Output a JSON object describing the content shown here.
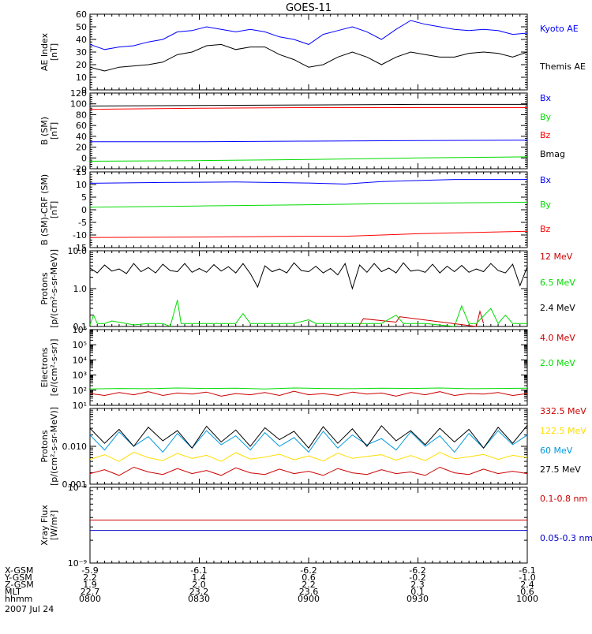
{
  "title": "GOES-11",
  "date": "2007 Jul 24",
  "footer": {
    "row_labels": [
      "X-GSM",
      "Y-GSM",
      "Z-GSM",
      "MLT",
      "hhmm"
    ],
    "columns": [
      {
        "values": [
          "-5.9",
          "2.2",
          "1.9",
          "22.7",
          "0800"
        ]
      },
      {
        "values": [
          "-6.1",
          "1.4",
          "2.0",
          "23.2",
          "0830"
        ]
      },
      {
        "values": [
          "-6.2",
          "0.6",
          "2.2",
          "23.6",
          "0900"
        ]
      },
      {
        "values": [
          "-6.2",
          "-0.2",
          "2.3",
          "0.1",
          "0930"
        ]
      },
      {
        "values": [
          "-6.1",
          "-1.0",
          "2.4",
          "0.6",
          "1000"
        ]
      }
    ]
  },
  "chart_data": [
    {
      "type": "line",
      "id": "ae",
      "ylabel": [
        "AE Index",
        "[nT]"
      ],
      "x_range": [
        0,
        120
      ],
      "ylim": [
        0,
        60
      ],
      "scale": "linear",
      "ticks": [
        0,
        10,
        20,
        30,
        40,
        50,
        60
      ],
      "tick_labels": [
        "0",
        "10",
        "20",
        "30",
        "40",
        "50",
        "60"
      ],
      "series": [
        {
          "name": "Kyoto AE",
          "color": "#0000ff",
          "x": [
            0,
            4,
            8,
            12,
            16,
            20,
            24,
            28,
            32,
            36,
            40,
            44,
            48,
            52,
            56,
            60,
            64,
            68,
            72,
            76,
            80,
            84,
            88,
            92,
            96,
            100,
            104,
            108,
            112,
            116,
            120
          ],
          "y": [
            36,
            32,
            34,
            35,
            38,
            40,
            46,
            47,
            50,
            48,
            46,
            48,
            46,
            42,
            40,
            36,
            44,
            47,
            50,
            46,
            40,
            48,
            55,
            52,
            50,
            48,
            47,
            48,
            47,
            44,
            45
          ]
        },
        {
          "name": "Themis AE",
          "color": "#000000",
          "x": [
            0,
            4,
            8,
            12,
            16,
            20,
            24,
            28,
            32,
            36,
            40,
            44,
            48,
            52,
            56,
            60,
            64,
            68,
            72,
            76,
            80,
            84,
            88,
            92,
            96,
            100,
            104,
            108,
            112,
            116,
            120
          ],
          "y": [
            18,
            15,
            18,
            19,
            20,
            22,
            28,
            30,
            35,
            36,
            32,
            34,
            34,
            28,
            24,
            18,
            20,
            26,
            30,
            26,
            20,
            26,
            30,
            28,
            26,
            26,
            29,
            30,
            29,
            26,
            30
          ]
        }
      ]
    },
    {
      "type": "line",
      "id": "b_sm",
      "ylabel": [
        "B (SM)",
        "[nT]"
      ],
      "x_range": [
        0,
        120
      ],
      "ylim": [
        -20,
        120
      ],
      "scale": "linear",
      "ticks": [
        -20,
        0,
        20,
        40,
        60,
        80,
        100,
        120
      ],
      "tick_labels": [
        "-20",
        "0",
        "20",
        "40",
        "60",
        "80",
        "100",
        "120"
      ],
      "series": [
        {
          "name": "Bx",
          "color": "#0000ff",
          "x": [
            0,
            30,
            60,
            90,
            120
          ],
          "y": [
            30,
            30,
            31,
            32,
            33
          ]
        },
        {
          "name": "By",
          "color": "#00dd00",
          "x": [
            0,
            30,
            60,
            90,
            120
          ],
          "y": [
            -6,
            -5,
            -3,
            0,
            2
          ]
        },
        {
          "name": "Bz",
          "color": "#ff0000",
          "x": [
            0,
            30,
            60,
            90,
            120
          ],
          "y": [
            90,
            92,
            93,
            93,
            93
          ]
        },
        {
          "name": "Bmag",
          "color": "#000000",
          "x": [
            0,
            30,
            60,
            90,
            120
          ],
          "y": [
            96,
            97,
            98,
            99,
            99
          ]
        }
      ]
    },
    {
      "type": "line",
      "id": "b_crf",
      "ylabel": [
        "B (SM)-CRF (SM)",
        "[nT]"
      ],
      "x_range": [
        0,
        120
      ],
      "ylim": [
        -15,
        15
      ],
      "scale": "linear",
      "ticks": [
        -15,
        -10,
        -5,
        0,
        5,
        10,
        15
      ],
      "tick_labels": [
        "-15",
        "-10",
        "-5",
        "0",
        "5",
        "10",
        "15"
      ],
      "series": [
        {
          "name": "Bx",
          "color": "#0000ff",
          "x": [
            0,
            20,
            40,
            60,
            70,
            80,
            100,
            120
          ],
          "y": [
            10.5,
            10.8,
            11,
            10.6,
            10.2,
            11.2,
            12,
            12
          ]
        },
        {
          "name": "By",
          "color": "#00dd00",
          "x": [
            0,
            30,
            60,
            90,
            120
          ],
          "y": [
            1,
            1.5,
            2,
            2.6,
            3
          ]
        },
        {
          "name": "Bz",
          "color": "#ff0000",
          "x": [
            0,
            30,
            60,
            70,
            90,
            120
          ],
          "y": [
            -11,
            -10.8,
            -10.5,
            -10.5,
            -9.5,
            -8.5
          ]
        }
      ]
    },
    {
      "type": "line",
      "id": "protons_low",
      "ylabel": [
        "Protons",
        "[p/(cm²-s-sr-MeV)]"
      ],
      "x_range": [
        0,
        120
      ],
      "ylim": [
        0.1,
        10
      ],
      "scale": "log",
      "ticks": [
        0.1,
        1,
        10
      ],
      "tick_labels": [
        "0.1",
        "1.0",
        "10.0"
      ],
      "series": [
        {
          "name": "12 MeV",
          "color": "#cc0000",
          "x": [
            74,
            75,
            84,
            85,
            106,
            107,
            108
          ],
          "y": [
            0.11,
            0.16,
            0.13,
            0.18,
            0.1,
            0.25,
            0.12
          ]
        },
        {
          "name": "6.5 MeV",
          "color": "#00dd00",
          "x": [
            0,
            1,
            2,
            4,
            6,
            10,
            12,
            16,
            20,
            22,
            24,
            25,
            26,
            30,
            36,
            40,
            42,
            44,
            46,
            56,
            60,
            62,
            68,
            70,
            72,
            80,
            84,
            86,
            88,
            92,
            100,
            102,
            104,
            106,
            110,
            112,
            114,
            116,
            118,
            120
          ],
          "y": [
            0.11,
            0.2,
            0.12,
            0.12,
            0.14,
            0.12,
            0.11,
            0.12,
            0.12,
            0.1,
            0.5,
            0.12,
            0.12,
            0.12,
            0.12,
            0.12,
            0.22,
            0.12,
            0.12,
            0.12,
            0.15,
            0.12,
            0.12,
            0.12,
            0.12,
            0.12,
            0.2,
            0.12,
            0.12,
            0.12,
            0.1,
            0.35,
            0.12,
            0.12,
            0.3,
            0.12,
            0.2,
            0.12,
            0.12,
            0.12
          ]
        },
        {
          "name": "2.4 MeV",
          "color": "#000000",
          "x": [
            0,
            2,
            4,
            6,
            8,
            10,
            12,
            14,
            16,
            18,
            20,
            22,
            24,
            26,
            28,
            30,
            32,
            34,
            36,
            38,
            40,
            42,
            44,
            46,
            48,
            50,
            52,
            54,
            56,
            58,
            60,
            62,
            64,
            66,
            68,
            70,
            72,
            74,
            76,
            78,
            80,
            82,
            84,
            86,
            88,
            90,
            92,
            94,
            96,
            98,
            100,
            102,
            104,
            106,
            108,
            110,
            112,
            114,
            116,
            118,
            120
          ],
          "y": [
            3.5,
            2.6,
            4.2,
            2.9,
            3.3,
            2.5,
            4.6,
            2.8,
            3.6,
            2.6,
            4.4,
            3.0,
            2.8,
            4.6,
            2.7,
            3.4,
            2.7,
            4.3,
            2.9,
            3.8,
            2.6,
            4.6,
            2.5,
            1.1,
            4.0,
            2.8,
            3.3,
            2.6,
            4.8,
            3.0,
            2.8,
            3.9,
            2.6,
            3.4,
            2.3,
            4.6,
            1.0,
            4.2,
            2.7,
            4.6,
            2.8,
            3.5,
            2.6,
            4.8,
            2.9,
            3.1,
            2.7,
            4.4,
            2.6,
            3.9,
            2.8,
            4.1,
            2.7,
            3.3,
            2.8,
            4.6,
            3.0,
            2.6,
            4.4,
            1.2,
            3.8
          ]
        }
      ]
    },
    {
      "type": "line",
      "id": "electrons",
      "ylabel": [
        "Electrons",
        "[e/(cm²-s-sr)]"
      ],
      "x_range": [
        0,
        120
      ],
      "ylim": [
        10,
        1000000
      ],
      "scale": "log",
      "ticks": [
        10,
        100,
        1000,
        10000,
        100000,
        1000000
      ],
      "tick_labels": [
        "10¹",
        "10²",
        "10³",
        "10⁴",
        "10⁵",
        "10⁶"
      ],
      "series": [
        {
          "name": "4.0 MeV",
          "color": "#cc0000",
          "x": [
            0,
            4,
            8,
            12,
            16,
            20,
            24,
            28,
            32,
            36,
            40,
            44,
            48,
            52,
            56,
            60,
            64,
            68,
            72,
            76,
            80,
            84,
            88,
            92,
            96,
            100,
            104,
            108,
            112,
            116,
            120
          ],
          "y": [
            60,
            45,
            70,
            50,
            80,
            45,
            65,
            55,
            75,
            40,
            60,
            50,
            70,
            45,
            85,
            50,
            60,
            45,
            75,
            55,
            65,
            40,
            70,
            50,
            80,
            45,
            60,
            55,
            70,
            45,
            60
          ]
        },
        {
          "name": "2.0 MeV",
          "color": "#00dd00",
          "x": [
            0,
            8,
            16,
            24,
            32,
            40,
            48,
            56,
            64,
            72,
            80,
            88,
            96,
            104,
            112,
            120
          ],
          "y": [
            120,
            130,
            125,
            140,
            130,
            135,
            120,
            140,
            130,
            125,
            135,
            130,
            140,
            125,
            130,
            135
          ]
        }
      ]
    },
    {
      "type": "line",
      "id": "protons_high",
      "ylabel": [
        "Protons",
        "[p/(cm²-s-sr-MeV)]"
      ],
      "x_range": [
        0,
        120
      ],
      "ylim": [
        0.001,
        0.1
      ],
      "scale": "log",
      "ticks": [
        0.001,
        0.01
      ],
      "tick_labels": [
        "0.001",
        "0.010"
      ],
      "series": [
        {
          "name": "332.5 MeV",
          "color": "#cc0000",
          "x": [
            0,
            4,
            8,
            12,
            16,
            20,
            24,
            28,
            32,
            36,
            40,
            44,
            48,
            52,
            56,
            60,
            64,
            68,
            72,
            76,
            80,
            84,
            88,
            92,
            96,
            100,
            104,
            108,
            112,
            116,
            120
          ],
          "y": [
            0.0019,
            0.0024,
            0.0017,
            0.0028,
            0.0021,
            0.0018,
            0.0026,
            0.0019,
            0.0023,
            0.0017,
            0.0027,
            0.002,
            0.0018,
            0.0025,
            0.0019,
            0.0022,
            0.0017,
            0.0026,
            0.002,
            0.0018,
            0.0024,
            0.0019,
            0.0021,
            0.0017,
            0.0028,
            0.002,
            0.0018,
            0.0025,
            0.0019,
            0.0022,
            0.0019
          ]
        },
        {
          "name": "122.5 MeV",
          "color": "#ffdd00",
          "x": [
            0,
            4,
            8,
            12,
            16,
            20,
            24,
            28,
            32,
            36,
            40,
            44,
            48,
            52,
            56,
            60,
            64,
            68,
            72,
            76,
            80,
            84,
            88,
            92,
            96,
            100,
            104,
            108,
            112,
            116,
            120
          ],
          "y": [
            0.0045,
            0.006,
            0.004,
            0.007,
            0.005,
            0.0042,
            0.0065,
            0.0048,
            0.0058,
            0.004,
            0.0068,
            0.0046,
            0.0052,
            0.0062,
            0.0044,
            0.0056,
            0.0041,
            0.0066,
            0.0048,
            0.0054,
            0.006,
            0.0043,
            0.0057,
            0.0042,
            0.0069,
            0.0047,
            0.0053,
            0.0061,
            0.0045,
            0.0058,
            0.005
          ]
        },
        {
          "name": "60 MeV",
          "color": "#0099dd",
          "x": [
            0,
            4,
            8,
            12,
            16,
            20,
            24,
            28,
            32,
            36,
            40,
            44,
            48,
            52,
            56,
            60,
            64,
            68,
            72,
            76,
            80,
            84,
            88,
            92,
            96,
            100,
            104,
            108,
            112,
            116,
            120
          ],
          "y": [
            0.02,
            0.008,
            0.024,
            0.01,
            0.018,
            0.007,
            0.022,
            0.009,
            0.026,
            0.011,
            0.019,
            0.008,
            0.023,
            0.01,
            0.017,
            0.007,
            0.025,
            0.009,
            0.02,
            0.011,
            0.016,
            0.008,
            0.024,
            0.01,
            0.019,
            0.007,
            0.022,
            0.009,
            0.026,
            0.011,
            0.02
          ]
        },
        {
          "name": "27.5 MeV",
          "color": "#000000",
          "x": [
            0,
            4,
            8,
            12,
            16,
            20,
            24,
            28,
            32,
            36,
            40,
            44,
            48,
            52,
            56,
            60,
            64,
            68,
            72,
            76,
            80,
            84,
            88,
            92,
            96,
            100,
            104,
            108,
            112,
            116,
            120
          ],
          "y": [
            0.03,
            0.012,
            0.028,
            0.01,
            0.032,
            0.014,
            0.026,
            0.009,
            0.034,
            0.013,
            0.027,
            0.01,
            0.031,
            0.015,
            0.025,
            0.009,
            0.033,
            0.012,
            0.029,
            0.01,
            0.035,
            0.014,
            0.026,
            0.011,
            0.03,
            0.013,
            0.028,
            0.009,
            0.032,
            0.012,
            0.036
          ]
        }
      ]
    },
    {
      "type": "line",
      "id": "xray",
      "ylabel": [
        "Xray Flux",
        "[W/m²]"
      ],
      "x_range": [
        0,
        120
      ],
      "ylim": [
        1e-09,
        1e-08
      ],
      "scale": "log",
      "ticks": [
        1e-09,
        1e-08
      ],
      "tick_labels": [
        "10⁻⁹",
        "10⁻⁸"
      ],
      "series": [
        {
          "name": "0.1-0.8 nm",
          "color": "#cc0000",
          "x": [
            0,
            120
          ],
          "y": [
            3.7e-09,
            3.7e-09
          ]
        },
        {
          "name": "0.05-0.3 nm",
          "color": "#0000cc",
          "x": [
            0,
            120
          ],
          "y": [
            2.7e-09,
            2.7e-09
          ]
        }
      ]
    }
  ]
}
